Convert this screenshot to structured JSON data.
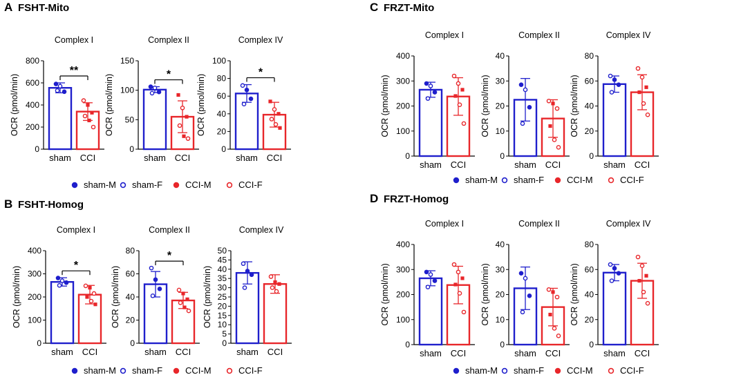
{
  "colors": {
    "sham": "#1f1fcc",
    "cci": "#e8262a",
    "axis": "#000000"
  },
  "panels": [
    {
      "letter": "A",
      "title": "FSHT-Mito"
    },
    {
      "letter": "B",
      "title": "FSHT-Homog"
    },
    {
      "letter": "C",
      "title": "FRZT-Mito"
    },
    {
      "letter": "D",
      "title": "FRZT-Homog"
    }
  ],
  "legend_items": [
    {
      "label": "sham-M",
      "group": "sham",
      "fill": true
    },
    {
      "label": "sham-F",
      "group": "sham",
      "fill": false
    },
    {
      "label": "CCI-M",
      "group": "cci",
      "fill": true
    },
    {
      "label": "CCI-F",
      "group": "cci",
      "fill": false
    }
  ],
  "chart_data": [
    {
      "type": "bar",
      "panel": "A",
      "title": "Complex I",
      "ylabel": "OCR (pmol/min)",
      "ylim": [
        0,
        800
      ],
      "yticks": [
        0,
        200,
        400,
        600,
        800
      ],
      "categories": [
        "sham",
        "CCI"
      ],
      "means": [
        555,
        340
      ],
      "sd": [
        45,
        80
      ],
      "significance": "**",
      "points": [
        [
          {
            "v": 590,
            "m": true
          },
          {
            "v": 570,
            "m": false
          },
          {
            "v": 520,
            "m": true
          },
          {
            "v": 530,
            "m": false
          }
        ],
        [
          {
            "v": 440,
            "m": false
          },
          {
            "v": 400,
            "m": true
          },
          {
            "v": 330,
            "m": true
          },
          {
            "v": 300,
            "m": false
          },
          {
            "v": 260,
            "m": true
          },
          {
            "v": 200,
            "m": false
          }
        ]
      ]
    },
    {
      "type": "bar",
      "panel": "A",
      "title": "Complex II",
      "ylabel": "OCR (pmol/min)",
      "ylim": [
        0,
        150
      ],
      "yticks": [
        0,
        50,
        100,
        150
      ],
      "categories": [
        "sham",
        "CCI"
      ],
      "means": [
        101,
        55
      ],
      "sd": [
        5,
        27
      ],
      "significance": "*",
      "points": [
        [
          {
            "v": 106,
            "m": true
          },
          {
            "v": 104,
            "m": false
          },
          {
            "v": 97,
            "m": true
          },
          {
            "v": 95,
            "m": false
          }
        ],
        [
          {
            "v": 92,
            "m": true
          },
          {
            "v": 70,
            "m": false
          },
          {
            "v": 55,
            "m": true
          },
          {
            "v": 40,
            "m": false
          },
          {
            "v": 22,
            "m": true
          },
          {
            "v": 18,
            "m": false
          }
        ]
      ]
    },
    {
      "type": "bar",
      "panel": "A",
      "title": "Complex IV",
      "ylabel": "OCR (pmol/min)",
      "ylim": [
        0,
        100
      ],
      "yticks": [
        0,
        20,
        40,
        60,
        80,
        100
      ],
      "categories": [
        "sham",
        "CCI"
      ],
      "means": [
        63,
        39
      ],
      "sd": [
        10,
        14
      ],
      "significance": "*",
      "points": [
        [
          {
            "v": 72,
            "m": false
          },
          {
            "v": 67,
            "m": true
          },
          {
            "v": 57,
            "m": true
          },
          {
            "v": 51,
            "m": false
          }
        ],
        [
          {
            "v": 54,
            "m": true
          },
          {
            "v": 45,
            "m": false
          },
          {
            "v": 40,
            "m": true
          },
          {
            "v": 34,
            "m": false
          },
          {
            "v": 28,
            "m": false
          },
          {
            "v": 24,
            "m": true
          }
        ]
      ]
    },
    {
      "type": "bar",
      "panel": "B",
      "title": "Complex I",
      "ylabel": "OCR (pmol/min)",
      "ylim": [
        0,
        400
      ],
      "yticks": [
        0,
        100,
        200,
        300,
        400
      ],
      "categories": [
        "sham",
        "CCI"
      ],
      "means": [
        265,
        210
      ],
      "sd": [
        18,
        40
      ],
      "significance": "*",
      "points": [
        [
          {
            "v": 282,
            "m": true
          },
          {
            "v": 270,
            "m": false
          },
          {
            "v": 262,
            "m": true
          },
          {
            "v": 250,
            "m": false
          }
        ],
        [
          {
            "v": 248,
            "m": false
          },
          {
            "v": 240,
            "m": true
          },
          {
            "v": 215,
            "m": false
          },
          {
            "v": 200,
            "m": true
          },
          {
            "v": 182,
            "m": false
          },
          {
            "v": 168,
            "m": true
          }
        ]
      ]
    },
    {
      "type": "bar",
      "panel": "B",
      "title": "Complex II",
      "ylabel": "OCR (pmol/min)",
      "ylim": [
        0,
        80
      ],
      "yticks": [
        0,
        20,
        40,
        60,
        80
      ],
      "categories": [
        "sham",
        "CCI"
      ],
      "means": [
        51,
        37
      ],
      "sd": [
        11,
        7
      ],
      "significance": "*",
      "points": [
        [
          {
            "v": 65,
            "m": false
          },
          {
            "v": 55,
            "m": true
          },
          {
            "v": 47,
            "m": true
          },
          {
            "v": 41,
            "m": false
          }
        ],
        [
          {
            "v": 46,
            "m": false
          },
          {
            "v": 43,
            "m": true
          },
          {
            "v": 38,
            "m": true
          },
          {
            "v": 35,
            "m": false
          },
          {
            "v": 31,
            "m": true
          },
          {
            "v": 28,
            "m": false
          }
        ]
      ]
    },
    {
      "type": "bar",
      "panel": "B",
      "title": "Complex IV",
      "ylabel": "OCR (pmol/min)",
      "ylim": [
        0,
        50
      ],
      "yticks": [
        0,
        5,
        10,
        15,
        20,
        25,
        30,
        35,
        40,
        45,
        50
      ],
      "categories": [
        "sham",
        "CCI"
      ],
      "means": [
        38,
        32
      ],
      "sd": [
        6,
        5
      ],
      "significance": "",
      "points": [
        [
          {
            "v": 43,
            "m": false
          },
          {
            "v": 39,
            "m": true
          },
          {
            "v": 37,
            "m": true
          },
          {
            "v": 30,
            "m": false
          }
        ],
        [
          {
            "v": 36,
            "m": false
          },
          {
            "v": 33,
            "m": true
          },
          {
            "v": 32,
            "m": true
          },
          {
            "v": 30,
            "m": false
          },
          {
            "v": 28,
            "m": false
          }
        ]
      ]
    },
    {
      "type": "bar",
      "panel": "C",
      "title": "Complex I",
      "ylabel": "OCR (pmol/min)",
      "ylim": [
        0,
        400
      ],
      "yticks": [
        0,
        100,
        200,
        300,
        400
      ],
      "categories": [
        "sham",
        "CCI"
      ],
      "means": [
        265,
        238
      ],
      "sd": [
        30,
        75
      ],
      "significance": "",
      "points": [
        [
          {
            "v": 290,
            "m": true
          },
          {
            "v": 280,
            "m": false
          },
          {
            "v": 255,
            "m": true
          },
          {
            "v": 230,
            "m": false
          }
        ],
        [
          {
            "v": 320,
            "m": false
          },
          {
            "v": 290,
            "m": false
          },
          {
            "v": 265,
            "m": true
          },
          {
            "v": 240,
            "m": true
          },
          {
            "v": 205,
            "m": false
          },
          {
            "v": 130,
            "m": false
          }
        ]
      ]
    },
    {
      "type": "bar",
      "panel": "C",
      "title": "Complex II",
      "ylabel": "OCR (pmol/min)",
      "ylim": [
        0,
        40
      ],
      "yticks": [
        0,
        10,
        20,
        30,
        40
      ],
      "categories": [
        "sham",
        "CCI"
      ],
      "means": [
        22.5,
        15
      ],
      "sd": [
        8.5,
        7.5
      ],
      "significance": "",
      "points": [
        [
          {
            "v": 28.5,
            "m": true
          },
          {
            "v": 26.5,
            "m": false
          },
          {
            "v": 19.5,
            "m": true
          },
          {
            "v": 13,
            "m": false
          }
        ],
        [
          {
            "v": 22,
            "m": false
          },
          {
            "v": 21,
            "m": true
          },
          {
            "v": 19,
            "m": false
          },
          {
            "v": 12,
            "m": true
          },
          {
            "v": 6.5,
            "m": false
          },
          {
            "v": 3.5,
            "m": false
          }
        ]
      ]
    },
    {
      "type": "bar",
      "panel": "C",
      "title": "Complex IV",
      "ylabel": "OCR (pmol/min)",
      "ylim": [
        0,
        80
      ],
      "yticks": [
        0,
        20,
        40,
        60,
        80
      ],
      "categories": [
        "sham",
        "CCI"
      ],
      "means": [
        57.5,
        51
      ],
      "sd": [
        6.5,
        14
      ],
      "significance": "",
      "points": [
        [
          {
            "v": 64,
            "m": false
          },
          {
            "v": 61,
            "m": true
          },
          {
            "v": 57,
            "m": true
          },
          {
            "v": 51,
            "m": false
          }
        ],
        [
          {
            "v": 70,
            "m": false
          },
          {
            "v": 63,
            "m": false
          },
          {
            "v": 55,
            "m": true
          },
          {
            "v": 51,
            "m": true
          },
          {
            "v": 42,
            "m": false
          },
          {
            "v": 33,
            "m": false
          }
        ]
      ]
    },
    {
      "type": "bar",
      "panel": "D",
      "title": "Complex I",
      "ylabel": "OCR (pmol/min)",
      "ylim": [
        0,
        400
      ],
      "yticks": [
        0,
        100,
        200,
        300,
        400
      ],
      "categories": [
        "sham",
        "CCI"
      ],
      "means": [
        265,
        238
      ],
      "sd": [
        30,
        75
      ],
      "significance": "",
      "points": [
        [
          {
            "v": 290,
            "m": true
          },
          {
            "v": 280,
            "m": false
          },
          {
            "v": 255,
            "m": true
          },
          {
            "v": 230,
            "m": false
          }
        ],
        [
          {
            "v": 320,
            "m": false
          },
          {
            "v": 290,
            "m": false
          },
          {
            "v": 265,
            "m": true
          },
          {
            "v": 240,
            "m": true
          },
          {
            "v": 205,
            "m": false
          },
          {
            "v": 130,
            "m": false
          }
        ]
      ]
    },
    {
      "type": "bar",
      "panel": "D",
      "title": "Complex II",
      "ylabel": "OCR (pmol/min)",
      "ylim": [
        0,
        40
      ],
      "yticks": [
        0,
        10,
        20,
        30,
        40
      ],
      "categories": [
        "sham",
        "CCI"
      ],
      "means": [
        22.5,
        15
      ],
      "sd": [
        8.5,
        7.5
      ],
      "significance": "",
      "points": [
        [
          {
            "v": 28.5,
            "m": true
          },
          {
            "v": 26.5,
            "m": false
          },
          {
            "v": 19.5,
            "m": true
          },
          {
            "v": 13,
            "m": false
          }
        ],
        [
          {
            "v": 22,
            "m": false
          },
          {
            "v": 21,
            "m": true
          },
          {
            "v": 19,
            "m": false
          },
          {
            "v": 12,
            "m": true
          },
          {
            "v": 6.5,
            "m": false
          },
          {
            "v": 3.5,
            "m": false
          }
        ]
      ]
    },
    {
      "type": "bar",
      "panel": "D",
      "title": "Complex IV",
      "ylabel": "OCR (pmol/min)",
      "ylim": [
        0,
        80
      ],
      "yticks": [
        0,
        20,
        40,
        60,
        80
      ],
      "categories": [
        "sham",
        "CCI"
      ],
      "means": [
        57.5,
        51
      ],
      "sd": [
        6.5,
        14
      ],
      "significance": "",
      "points": [
        [
          {
            "v": 64,
            "m": false
          },
          {
            "v": 61,
            "m": true
          },
          {
            "v": 57,
            "m": true
          },
          {
            "v": 51,
            "m": false
          }
        ],
        [
          {
            "v": 70,
            "m": false
          },
          {
            "v": 63,
            "m": false
          },
          {
            "v": 55,
            "m": true
          },
          {
            "v": 51,
            "m": true
          },
          {
            "v": 42,
            "m": false
          },
          {
            "v": 33,
            "m": false
          }
        ]
      ]
    }
  ]
}
